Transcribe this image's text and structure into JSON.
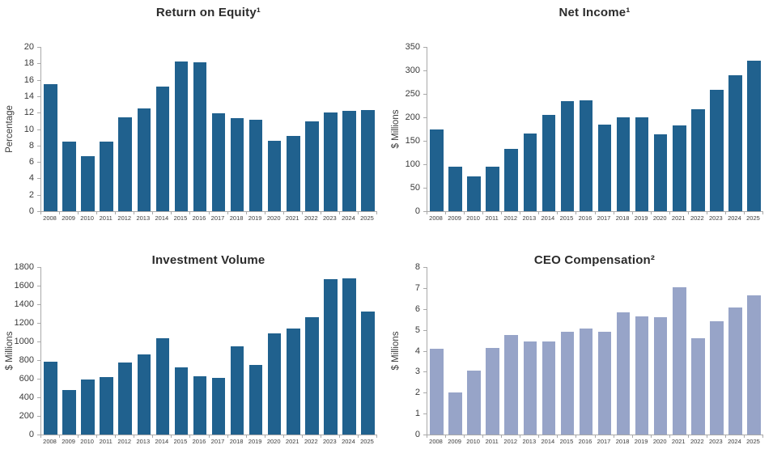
{
  "page": {
    "background": "#ffffff",
    "axis_color": "#a9a9a9",
    "text_color": "#3a3a3a",
    "title_color": "#2b2b2b"
  },
  "chart_data": [
    {
      "type": "bar",
      "title": "Return on Equity¹",
      "ylabel": "Percentage",
      "bar_color": "#20618e",
      "ylim": [
        0,
        20
      ],
      "ytick_step": 2,
      "grid": false,
      "legend": "none",
      "categories": [
        "2008",
        "2009",
        "2010",
        "2011",
        "2012",
        "2013",
        "2014",
        "2015",
        "2016",
        "2017",
        "2018",
        "2019",
        "2020",
        "2021",
        "2022",
        "2023",
        "2024",
        "2025"
      ],
      "values": [
        15.5,
        8.5,
        6.7,
        8.5,
        11.4,
        12.5,
        15.2,
        18.2,
        18.1,
        11.9,
        11.3,
        11.1,
        8.6,
        9.2,
        10.9,
        12.0,
        12.2,
        12.3
      ]
    },
    {
      "type": "bar",
      "title": "Net Income¹",
      "ylabel": "$ Millions",
      "bar_color": "#20618e",
      "ylim": [
        0,
        350
      ],
      "ytick_step": 50,
      "grid": false,
      "legend": "none",
      "categories": [
        "2008",
        "2009",
        "2010",
        "2011",
        "2012",
        "2013",
        "2014",
        "2015",
        "2016",
        "2017",
        "2018",
        "2019",
        "2020",
        "2021",
        "2022",
        "2023",
        "2024",
        "2025"
      ],
      "values": [
        175,
        95,
        75,
        95,
        133,
        165,
        205,
        235,
        237,
        185,
        200,
        200,
        163,
        182,
        218,
        258,
        290,
        320
      ]
    },
    {
      "type": "bar",
      "title": "Investment Volume",
      "ylabel": "$ Millions",
      "bar_color": "#20618e",
      "ylim": [
        0,
        1800
      ],
      "ytick_step": 200,
      "grid": false,
      "legend": "none",
      "categories": [
        "2008",
        "2009",
        "2010",
        "2011",
        "2012",
        "2013",
        "2014",
        "2015",
        "2016",
        "2017",
        "2018",
        "2019",
        "2020",
        "2021",
        "2022",
        "2023",
        "2024",
        "2025"
      ],
      "values": [
        785,
        480,
        590,
        620,
        775,
        865,
        1035,
        720,
        625,
        605,
        950,
        745,
        1090,
        1140,
        1260,
        1670,
        1680,
        1325
      ]
    },
    {
      "type": "bar",
      "title": "CEO Compensation²",
      "ylabel": "$ Millions",
      "bar_color": "#97a4c8",
      "ylim": [
        0,
        8
      ],
      "ytick_step": 1,
      "grid": false,
      "legend": "none",
      "categories": [
        "2008",
        "2009",
        "2010",
        "2011",
        "2012",
        "2013",
        "2014",
        "2015",
        "2016",
        "2017",
        "2018",
        "2019",
        "2020",
        "2021",
        "2022",
        "2023",
        "2024",
        "2025"
      ],
      "values": [
        4.1,
        2.0,
        3.05,
        4.15,
        4.75,
        4.45,
        4.45,
        4.9,
        5.05,
        4.9,
        5.85,
        5.65,
        5.6,
        7.05,
        4.6,
        5.4,
        6.05,
        6.65
      ]
    }
  ]
}
